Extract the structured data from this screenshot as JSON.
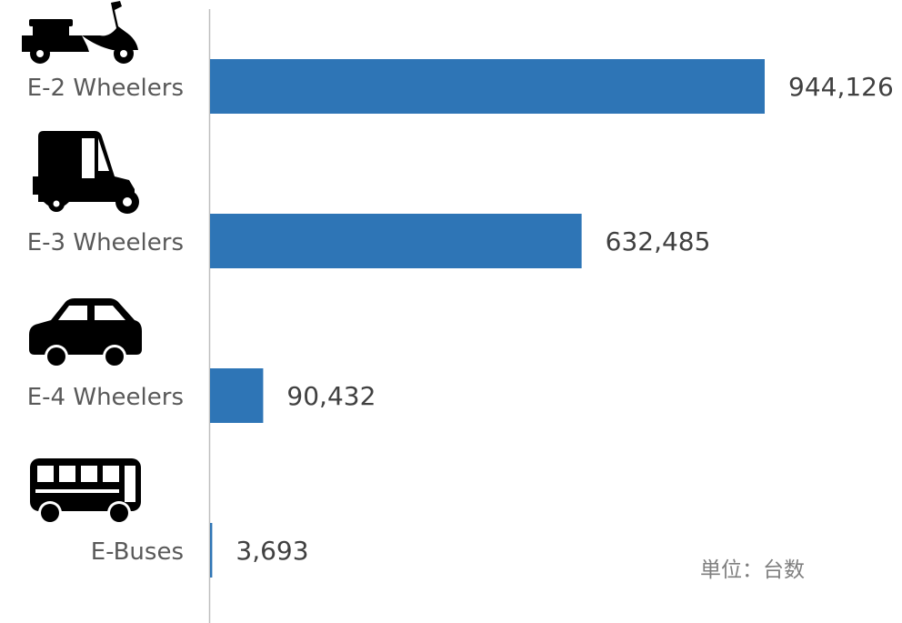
{
  "chart_data": {
    "type": "bar",
    "orientation": "horizontal",
    "categories": [
      "E-2 Wheelers",
      "E-3 Wheelers",
      "E-4 Wheelers",
      "E-Buses"
    ],
    "values": [
      944126,
      632485,
      90432,
      3693
    ],
    "value_labels": [
      "944,126",
      "632,485",
      "90,432",
      "3,693"
    ],
    "icons": [
      "scooter-icon",
      "auto-rickshaw-icon",
      "car-icon",
      "bus-icon"
    ],
    "xlim": [
      0,
      1000000
    ],
    "grid": false,
    "bar_color": "#2E75B6",
    "unit_note": "単位：台数"
  }
}
